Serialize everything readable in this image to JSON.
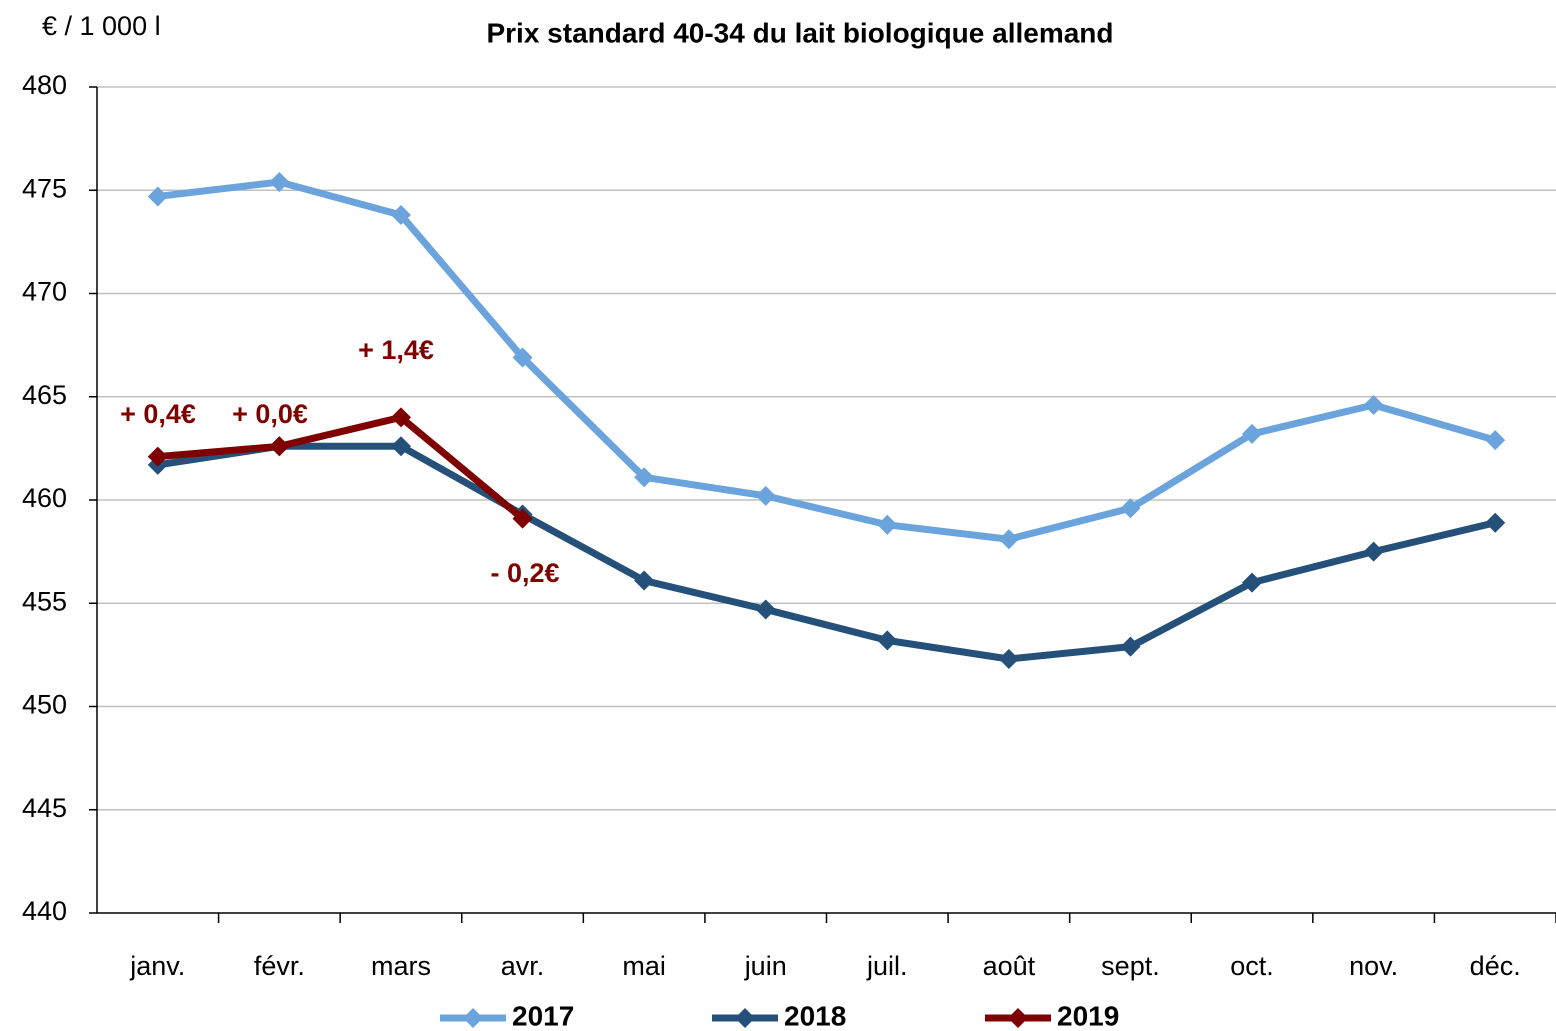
{
  "chart_data": {
    "type": "line",
    "title": "Prix standard 40-34  du lait biologique allemand",
    "y_label": "€ / 1 000 l",
    "categories": [
      "janv.",
      "févr.",
      "mars",
      "avr.",
      "mai",
      "juin",
      "juil.",
      "août",
      "sept.",
      "oct.",
      "nov.",
      "déc."
    ],
    "series": [
      {
        "name": "2017",
        "color": "#6ba4dc",
        "values": [
          474.7,
          475.4,
          473.8,
          466.9,
          461.1,
          460.2,
          458.8,
          458.1,
          459.6,
          463.2,
          464.6,
          462.9
        ]
      },
      {
        "name": "2018",
        "color": "#24507a",
        "values": [
          461.7,
          462.6,
          462.6,
          459.3,
          456.1,
          454.7,
          453.2,
          452.3,
          452.9,
          456.0,
          457.5,
          458.9
        ]
      },
      {
        "name": "2019",
        "color": "#7f0000",
        "values": [
          462.1,
          462.6,
          464.0,
          459.1,
          null,
          null,
          null,
          null,
          null,
          null,
          null,
          null
        ]
      }
    ],
    "annotations": [
      "+ 0,4€",
      "+ 0,0€",
      "+ 1,4€",
      "- 0,2€"
    ],
    "annotation_color": "#7f0000",
    "ylim": [
      440,
      480
    ],
    "yticks": [
      440,
      445,
      450,
      455,
      460,
      465,
      470,
      475,
      480
    ],
    "grid": true,
    "legend": "bottom"
  }
}
